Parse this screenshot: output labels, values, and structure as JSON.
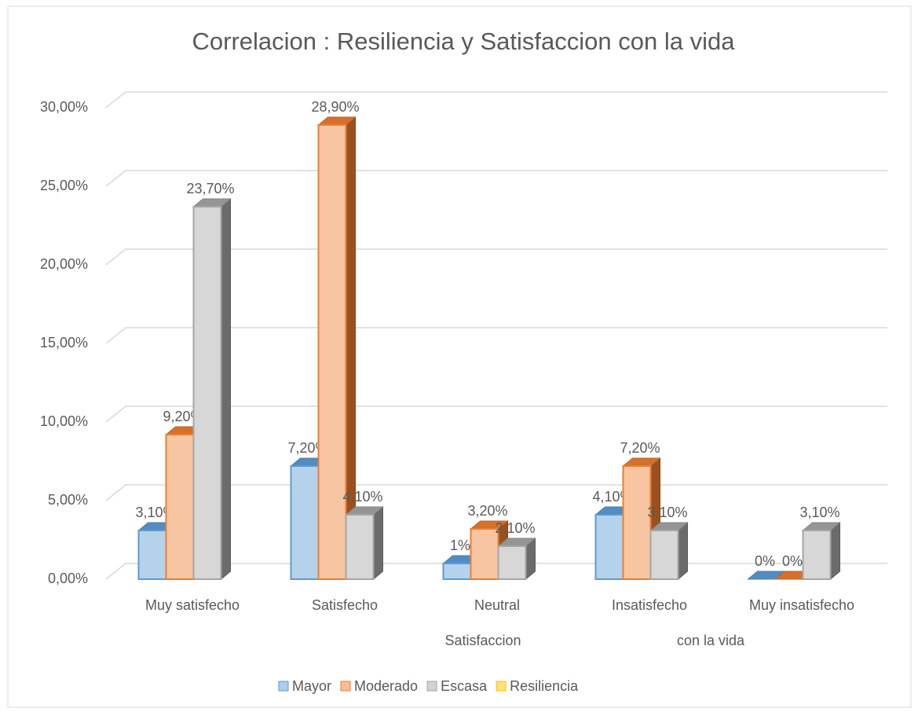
{
  "chart_data": {
    "type": "bar3d",
    "title": "Correlacion :   Resiliencia y  Satisfaccion con la vida",
    "categories": [
      "Muy satisfecho",
      "Satisfecho",
      "Neutral",
      "Insatisfecho",
      "Muy insatisfecho"
    ],
    "xlabel": [
      "Satisfaccion",
      "con la vida"
    ],
    "series": [
      {
        "name": "Mayor",
        "color": "#5b9bd5",
        "values": [
          3.1,
          7.2,
          1,
          4.1,
          0
        ],
        "value_labels": [
          "3,10%",
          "7,20%",
          "1%",
          "4,10%",
          "0%"
        ]
      },
      {
        "name": "Moderado",
        "color": "#ed7d31",
        "values": [
          9.2,
          28.9,
          3.2,
          7.2,
          0
        ],
        "value_labels": [
          "9,20%",
          "28,90%",
          "3,20%",
          "7,20%",
          "0%"
        ]
      },
      {
        "name": "Escasa",
        "color": "#a5a5a5",
        "values": [
          23.7,
          4.1,
          2.1,
          3.1,
          3.1
        ],
        "value_labels": [
          "23,70%",
          "4,10%",
          "2,10%",
          "3,10%",
          "3,10%"
        ]
      },
      {
        "name": "Resiliencia",
        "color": "#ffc000",
        "values": [
          null,
          null,
          null,
          null,
          null
        ]
      }
    ],
    "ylim": [
      0,
      30
    ],
    "yticks": [
      {
        "value": 0,
        "label": "0,00%"
      },
      {
        "value": 5,
        "label": "5,00%"
      },
      {
        "value": 10,
        "label": "10,00%"
      },
      {
        "value": 15,
        "label": "15,00%"
      },
      {
        "value": 20,
        "label": "20,00%"
      },
      {
        "value": 25,
        "label": "25,00%"
      },
      {
        "value": 30,
        "label": "30,00%"
      }
    ],
    "grid": true,
    "legend": "bottom"
  }
}
